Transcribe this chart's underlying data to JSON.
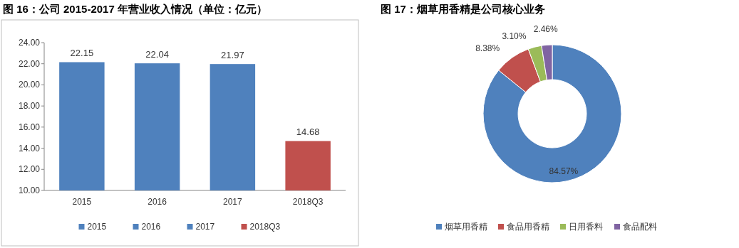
{
  "chart_data": [
    {
      "type": "bar",
      "title": "图 16：公司 2015-2017 年营业收入情况（单位：亿元）",
      "categories": [
        "2015",
        "2016",
        "2017",
        "2018Q3"
      ],
      "series": [
        {
          "name": "2015",
          "color": "#4f81bd",
          "values": [
            22.15,
            null,
            null,
            null
          ]
        },
        {
          "name": "2016",
          "color": "#4f81bd",
          "values": [
            null,
            22.04,
            null,
            null
          ]
        },
        {
          "name": "2017",
          "color": "#4f81bd",
          "values": [
            null,
            null,
            21.97,
            null
          ]
        },
        {
          "name": "2018Q3",
          "color": "#c0504d",
          "values": [
            null,
            null,
            null,
            14.68
          ]
        }
      ],
      "ylim": [
        10,
        24
      ],
      "yticks": [
        {
          "value": 10,
          "label": "10.00"
        },
        {
          "value": 12,
          "label": "12.00"
        },
        {
          "value": 14,
          "label": "14.00"
        },
        {
          "value": 16,
          "label": "16.00"
        },
        {
          "value": 18,
          "label": "18.00"
        },
        {
          "value": 20,
          "label": "20.00"
        },
        {
          "value": 22,
          "label": "22.00"
        },
        {
          "value": 24,
          "label": "24.00"
        }
      ],
      "data_labels": true,
      "legend": "bottom"
    },
    {
      "type": "donut",
      "title": "图 17：烟草用香精是公司核心业务",
      "categories": [
        "烟草用香精",
        "食品用香精",
        "日用香料",
        "食品配料"
      ],
      "values": [
        84.57,
        8.38,
        3.1,
        2.46
      ],
      "value_labels": [
        "84.57%",
        "8.38%",
        "3.10%",
        "2.46%"
      ],
      "colors": [
        "#4f81bd",
        "#c0504d",
        "#9bbb59",
        "#8064a2"
      ],
      "legend": "bottom"
    }
  ]
}
